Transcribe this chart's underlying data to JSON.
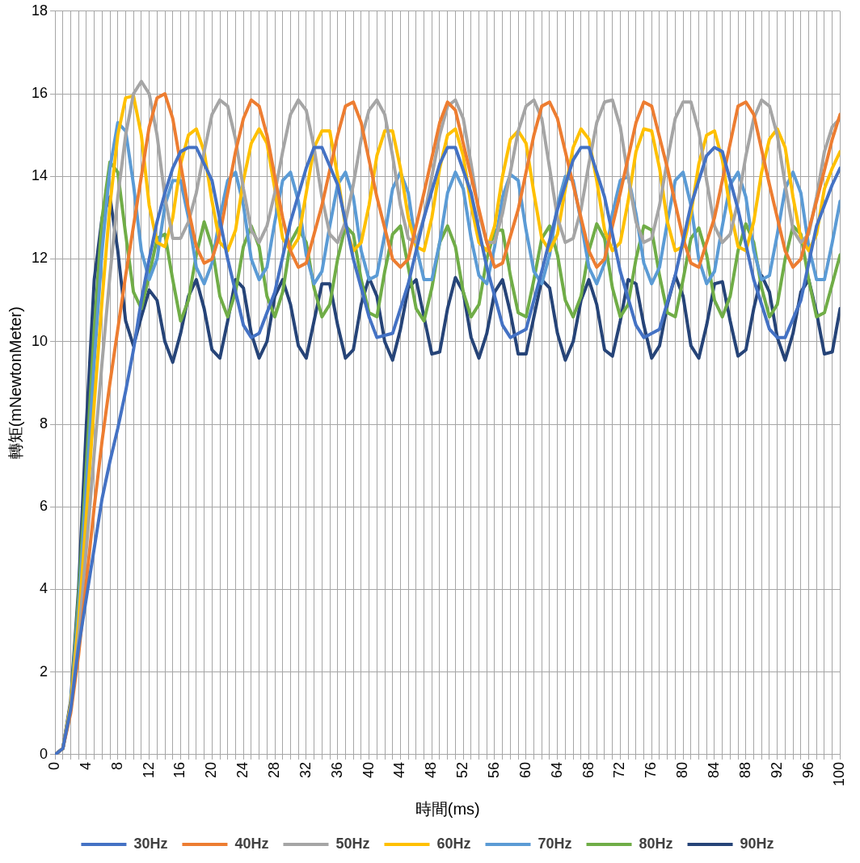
{
  "chart_data": {
    "type": "line",
    "xlabel": "時間(ms)",
    "ylabel": "轉矩(mNewtonMeter)",
    "x": [
      0,
      1,
      2,
      3,
      4,
      5,
      6,
      7,
      8,
      9,
      10,
      11,
      12,
      13,
      14,
      15,
      16,
      17,
      18,
      19,
      20,
      21,
      22,
      23,
      24,
      25,
      26,
      27,
      28,
      29,
      30,
      31,
      32,
      33,
      34,
      35,
      36,
      37,
      38,
      39,
      40,
      41,
      42,
      43,
      44,
      45,
      46,
      47,
      48,
      49,
      50,
      51,
      52,
      53,
      54,
      55,
      56,
      57,
      58,
      59,
      60,
      61,
      62,
      63,
      64,
      65,
      66,
      67,
      68,
      69,
      70,
      71,
      72,
      73,
      74,
      75,
      76,
      77,
      78,
      79,
      80,
      81,
      82,
      83,
      84,
      85,
      86,
      87,
      88,
      89,
      90,
      91,
      92,
      93,
      94,
      95,
      96,
      97,
      98,
      99,
      100
    ],
    "xlim": [
      0,
      100
    ],
    "xticks": [
      0,
      {
        "value": 1,
        "label": null
      },
      {
        "value": 2,
        "label": null
      },
      {
        "value": 3,
        "label": null
      },
      4,
      {
        "value": 5,
        "label": null
      },
      {
        "value": 6,
        "label": null
      },
      {
        "value": 7,
        "label": null
      },
      8,
      {
        "value": 9,
        "label": null
      },
      {
        "value": 10,
        "label": null
      },
      {
        "value": 11,
        "label": null
      },
      12,
      {
        "value": 13,
        "label": null
      },
      {
        "value": 14,
        "label": null
      },
      {
        "value": 15,
        "label": null
      },
      16,
      {
        "value": 17,
        "label": null
      },
      {
        "value": 18,
        "label": null
      },
      {
        "value": 19,
        "label": null
      },
      20,
      {
        "value": 21,
        "label": null
      },
      {
        "value": 22,
        "label": null
      },
      {
        "value": 23,
        "label": null
      },
      24,
      {
        "value": 25,
        "label": null
      },
      {
        "value": 26,
        "label": null
      },
      {
        "value": 27,
        "label": null
      },
      28,
      {
        "value": 29,
        "label": null
      },
      {
        "value": 30,
        "label": null
      },
      {
        "value": 31,
        "label": null
      },
      32,
      {
        "value": 33,
        "label": null
      },
      {
        "value": 34,
        "label": null
      },
      {
        "value": 35,
        "label": null
      },
      36,
      {
        "value": 37,
        "label": null
      },
      {
        "value": 38,
        "label": null
      },
      {
        "value": 39,
        "label": null
      },
      40,
      {
        "value": 41,
        "label": null
      },
      {
        "value": 42,
        "label": null
      },
      {
        "value": 43,
        "label": null
      },
      44,
      {
        "value": 45,
        "label": null
      },
      {
        "value": 46,
        "label": null
      },
      {
        "value": 47,
        "label": null
      },
      48,
      {
        "value": 49,
        "label": null
      },
      {
        "value": 50,
        "label": null
      },
      {
        "value": 51,
        "label": null
      },
      52,
      {
        "value": 53,
        "label": null
      },
      {
        "value": 54,
        "label": null
      },
      {
        "value": 55,
        "label": null
      },
      56,
      {
        "value": 57,
        "label": null
      },
      {
        "value": 58,
        "label": null
      },
      {
        "value": 59,
        "label": null
      },
      60,
      {
        "value": 61,
        "label": null
      },
      {
        "value": 62,
        "label": null
      },
      {
        "value": 63,
        "label": null
      },
      64,
      {
        "value": 65,
        "label": null
      },
      {
        "value": 66,
        "label": null
      },
      {
        "value": 67,
        "label": null
      },
      68,
      {
        "value": 69,
        "label": null
      },
      {
        "value": 70,
        "label": null
      },
      {
        "value": 71,
        "label": null
      },
      72,
      {
        "value": 73,
        "label": null
      },
      {
        "value": 74,
        "label": null
      },
      {
        "value": 75,
        "label": null
      },
      76,
      {
        "value": 77,
        "label": null
      },
      {
        "value": 78,
        "label": null
      },
      {
        "value": 79,
        "label": null
      },
      80,
      {
        "value": 81,
        "label": null
      },
      {
        "value": 82,
        "label": null
      },
      {
        "value": 83,
        "label": null
      },
      84,
      {
        "value": 85,
        "label": null
      },
      {
        "value": 86,
        "label": null
      },
      {
        "value": 87,
        "label": null
      },
      88,
      {
        "value": 89,
        "label": null
      },
      {
        "value": 90,
        "label": null
      },
      {
        "value": 91,
        "label": null
      },
      92,
      {
        "value": 93,
        "label": null
      },
      {
        "value": 94,
        "label": null
      },
      {
        "value": 95,
        "label": null
      },
      96,
      {
        "value": 97,
        "label": null
      },
      {
        "value": 98,
        "label": null
      },
      {
        "value": 99,
        "label": null
      },
      100
    ],
    "ylim": [
      0,
      18
    ],
    "yticks": [
      0,
      2,
      4,
      6,
      8,
      10,
      12,
      14,
      16,
      18
    ],
    "grid": true,
    "legend": "bottom",
    "marker": "none",
    "line_style": "solid",
    "series": [
      {
        "name": "30Hz",
        "color": "#4472c4",
        "x": [
          0,
          1,
          2,
          3,
          4,
          5,
          6,
          7,
          8,
          9,
          10,
          11,
          12,
          13,
          14,
          15,
          16,
          17,
          18,
          20,
          22,
          24,
          25,
          26,
          28,
          30,
          32,
          33,
          34,
          36,
          38,
          40,
          41,
          43,
          45,
          47,
          49,
          50,
          51,
          53,
          55,
          57,
          58,
          60,
          62,
          64,
          66,
          67,
          68,
          70,
          72,
          74,
          75,
          77,
          79,
          81,
          83,
          84,
          85,
          87,
          89,
          91,
          92,
          93,
          95,
          97,
          99,
          100
        ],
        "values": [
          0,
          0.15,
          1.1,
          2.6,
          3.8,
          5,
          6.2,
          7.1,
          7.9,
          8.8,
          9.8,
          11,
          12,
          12.9,
          13.6,
          14.2,
          14.6,
          14.7,
          14.7,
          13.9,
          12,
          10.4,
          10.1,
          10.2,
          11.2,
          12.9,
          14.2,
          14.7,
          14.7,
          13.8,
          12,
          10.6,
          10.1,
          10.2,
          11.4,
          13,
          14.3,
          14.7,
          14.7,
          13.6,
          11.8,
          10.4,
          10.1,
          10.3,
          11.7,
          13.2,
          14.4,
          14.7,
          14.7,
          13.5,
          11.7,
          10.4,
          10.1,
          10.3,
          11.6,
          13.3,
          14.5,
          14.7,
          14.6,
          13.2,
          11.5,
          10.3,
          10.1,
          10.1,
          11,
          12.8,
          13.8,
          14.2
        ]
      },
      {
        "name": "40Hz",
        "color": "#ed7d31",
        "x": [
          0,
          1,
          2,
          3,
          4,
          5,
          6,
          7,
          8,
          9,
          10,
          11,
          12,
          13,
          14,
          15,
          16,
          17,
          18,
          19,
          20,
          21,
          22,
          23,
          24,
          25,
          26,
          27,
          28,
          29,
          30,
          31,
          32,
          34,
          36,
          37,
          38,
          39,
          41,
          43,
          44,
          45,
          47,
          49,
          50,
          51,
          53,
          55,
          56,
          57,
          59,
          61,
          62,
          63,
          64,
          66,
          68,
          69,
          70,
          72,
          74,
          75,
          76,
          78,
          80,
          81,
          82,
          84,
          86,
          87,
          88,
          89,
          91,
          93,
          94,
          95,
          97,
          99,
          100
        ],
        "values": [
          0,
          0.15,
          1,
          2.4,
          4.2,
          6,
          7.6,
          9,
          10.3,
          11.6,
          12.8,
          14,
          15.2,
          15.9,
          16,
          15.4,
          14.3,
          13.2,
          12.3,
          11.9,
          12,
          12.6,
          13.6,
          14.6,
          15.4,
          15.85,
          15.7,
          15,
          14,
          13,
          12.2,
          11.8,
          11.9,
          13.3,
          15,
          15.7,
          15.8,
          15.3,
          13.5,
          12,
          11.8,
          12,
          13.6,
          15.3,
          15.8,
          15.6,
          14,
          12.4,
          11.8,
          11.9,
          13.2,
          15,
          15.7,
          15.8,
          15.4,
          13.8,
          12.2,
          11.8,
          12,
          13.6,
          15.3,
          15.8,
          15.7,
          14.2,
          12.5,
          11.9,
          11.8,
          13,
          14.8,
          15.7,
          15.8,
          15.5,
          13.8,
          12.2,
          11.8,
          12,
          13.4,
          14.9,
          15.5
        ]
      },
      {
        "name": "50Hz",
        "color": "#a5a5a5",
        "values": [
          0,
          0.15,
          1.1,
          2.8,
          5,
          7.3,
          9.5,
          11.6,
          13.5,
          15,
          16,
          16.3,
          16,
          15,
          13.5,
          12.5,
          12.5,
          12.9,
          13.6,
          14.6,
          15.5,
          15.85,
          15.7,
          14.9,
          13.7,
          12.7,
          12.4,
          12.8,
          13.6,
          14.6,
          15.5,
          15.85,
          15.6,
          14.7,
          13.5,
          12.6,
          12.4,
          12.9,
          13.8,
          14.9,
          15.6,
          15.85,
          15.5,
          14.5,
          13.3,
          12.5,
          12.4,
          13,
          14,
          15,
          15.7,
          15.85,
          15.4,
          14.3,
          13.1,
          12.4,
          12.4,
          13.1,
          14.1,
          15.1,
          15.7,
          15.85,
          15.4,
          14.2,
          13,
          12.4,
          12.5,
          13.2,
          14.3,
          15.3,
          15.8,
          15.85,
          15.2,
          14,
          12.9,
          12.4,
          12.5,
          13.3,
          14.4,
          15.4,
          15.8,
          15.8,
          15.1,
          13.9,
          12.8,
          12.4,
          12.6,
          13.4,
          14.5,
          15.4,
          15.85,
          15.7,
          15,
          13.8,
          12.7,
          12.4,
          12.6,
          13.5,
          14.6,
          15.2,
          15.4
        ]
      },
      {
        "name": "60Hz",
        "color": "#ffc000",
        "values": [
          0,
          0.15,
          1.2,
          3.2,
          5.8,
          8.5,
          11,
          13.3,
          15,
          15.9,
          15.95,
          15,
          13.3,
          12.4,
          12.3,
          13,
          14.3,
          15,
          15.15,
          14.6,
          13.4,
          12.4,
          12.2,
          12.7,
          13.9,
          14.8,
          15.15,
          14.8,
          13.7,
          12.5,
          12.2,
          12.5,
          13.6,
          14.7,
          15.1,
          15.1,
          14,
          12.8,
          12.2,
          12.4,
          13.3,
          14.5,
          15.1,
          15.1,
          14.2,
          13,
          12.3,
          12.2,
          13,
          14.2,
          15,
          15.15,
          14.5,
          13.3,
          12.4,
          12.2,
          12.8,
          14,
          14.9,
          15.1,
          14.8,
          13.6,
          12.5,
          12.2,
          12.6,
          13.7,
          14.7,
          15.15,
          14.9,
          13.9,
          12.7,
          12.2,
          12.4,
          13.4,
          14.6,
          15.15,
          15.1,
          14.2,
          12.9,
          12.2,
          12.3,
          13.1,
          14.3,
          15,
          15.1,
          14.4,
          13.2,
          12.3,
          12.2,
          12.9,
          14.1,
          14.9,
          15.15,
          14.7,
          13.5,
          12.5,
          12.2,
          12.6,
          13.7,
          14.2,
          14.6
        ]
      },
      {
        "name": "70Hz",
        "color": "#5b9bd5",
        "values": [
          0,
          0.15,
          1.2,
          3.5,
          6.5,
          9.5,
          12.2,
          14.2,
          15.3,
          15.1,
          13.8,
          12.2,
          11.5,
          12,
          13.3,
          13.9,
          13.9,
          13,
          11.8,
          11.4,
          11.9,
          13,
          13.9,
          14.1,
          13.3,
          12,
          11.5,
          11.8,
          12.9,
          13.9,
          14.1,
          13.4,
          12.1,
          11.4,
          11.7,
          12.8,
          13.8,
          14.1,
          13.5,
          12.2,
          11.5,
          11.6,
          12.6,
          13.7,
          14.1,
          13.6,
          12.3,
          11.5,
          11.5,
          12.4,
          13.6,
          14.1,
          13.7,
          12.5,
          11.6,
          11.4,
          12.3,
          13.5,
          14.05,
          13.9,
          12.7,
          11.7,
          11.4,
          12.1,
          13.3,
          14,
          13.9,
          12.9,
          11.8,
          11.4,
          11.9,
          13.1,
          13.9,
          14,
          13.1,
          11.9,
          11.4,
          11.8,
          12.9,
          13.9,
          14.1,
          13.3,
          12,
          11.4,
          11.7,
          12.8,
          13.8,
          14.1,
          13.5,
          12.2,
          11.5,
          11.6,
          12.6,
          13.7,
          14.1,
          13.6,
          12.3,
          11.5,
          11.5,
          12.4,
          13.4
        ]
      },
      {
        "name": "80Hz",
        "color": "#70ad47",
        "values": [
          0,
          0.15,
          1.2,
          3.8,
          7,
          10.3,
          13,
          14.35,
          14.1,
          12.6,
          11.2,
          10.8,
          11.6,
          12.5,
          12.6,
          11.5,
          10.5,
          11,
          12.1,
          12.9,
          12.3,
          11.1,
          10.6,
          11.2,
          12.3,
          12.8,
          12.3,
          11.1,
          10.6,
          11.2,
          12.4,
          12.75,
          12.4,
          11.3,
          10.6,
          10.9,
          12,
          12.8,
          12.6,
          11.5,
          10.7,
          10.6,
          11.7,
          12.6,
          12.8,
          11.8,
          10.8,
          10.5,
          11.3,
          12.4,
          12.8,
          12.3,
          11.2,
          10.6,
          10.9,
          12,
          12.7,
          12.7,
          11.6,
          10.7,
          10.6,
          11.5,
          12.5,
          12.8,
          12.1,
          11,
          10.6,
          11.1,
          12.2,
          12.85,
          12.5,
          11.3,
          10.6,
          10.9,
          12,
          12.8,
          12.7,
          11.6,
          10.7,
          10.6,
          11.5,
          12.5,
          12.75,
          12.1,
          11,
          10.6,
          11.1,
          12.2,
          12.85,
          12.4,
          11.3,
          10.6,
          10.9,
          12,
          12.8,
          12.6,
          11.5,
          10.6,
          10.7,
          11.4,
          12.1
        ]
      },
      {
        "name": "90Hz",
        "color": "#264478",
        "values": [
          0,
          0.15,
          1.3,
          4,
          8,
          11.5,
          13,
          13.5,
          12.2,
          10.5,
          9.9,
          10.6,
          11.25,
          11,
          10,
          9.5,
          10.2,
          11.1,
          11.5,
          10.8,
          9.8,
          9.6,
          10.5,
          11.5,
          11.3,
          10.2,
          9.6,
          10,
          11.1,
          11.5,
          10.9,
          9.9,
          9.6,
          10.5,
          11.4,
          11.4,
          10.4,
          9.6,
          9.8,
          10.9,
          11.55,
          11.1,
          10,
          9.55,
          10.3,
          11.3,
          11.5,
          10.6,
          9.7,
          9.75,
          10.8,
          11.55,
          11.2,
          10.1,
          9.6,
          10.2,
          11.2,
          11.5,
          10.7,
          9.7,
          9.7,
          10.6,
          11.5,
          11.3,
          10.2,
          9.55,
          10,
          11,
          11.5,
          10.9,
          9.8,
          9.65,
          10.5,
          11.5,
          11.4,
          10.4,
          9.6,
          9.9,
          10.9,
          11.6,
          11.1,
          9.9,
          9.6,
          10.4,
          11.4,
          11.45,
          10.5,
          9.65,
          9.8,
          10.8,
          11.6,
          11.2,
          10.1,
          9.55,
          10.2,
          11.2,
          11.5,
          10.7,
          9.7,
          9.75,
          10.8
        ]
      }
    ]
  }
}
